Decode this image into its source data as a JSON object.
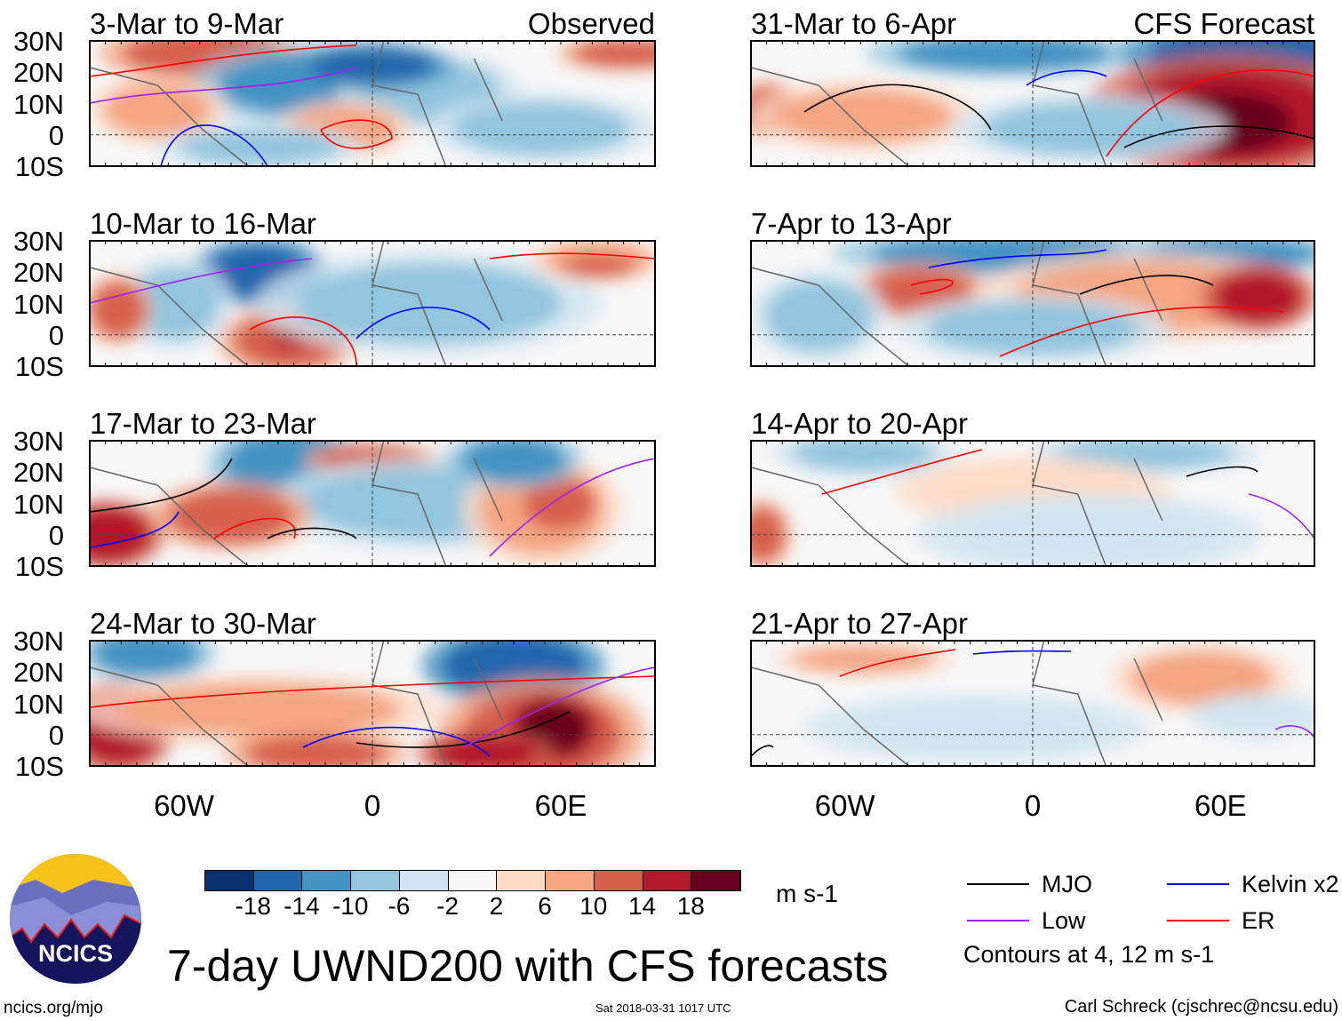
{
  "panels_left": [
    {
      "title": "3-Mar to 9-Mar",
      "tag": "Observed"
    },
    {
      "title": "10-Mar to 16-Mar"
    },
    {
      "title": "17-Mar to 23-Mar"
    },
    {
      "title": "24-Mar to 30-Mar"
    }
  ],
  "panels_right": [
    {
      "title": "31-Mar to 6-Apr",
      "tag": "CFS Forecast"
    },
    {
      "title": "7-Apr to 13-Apr"
    },
    {
      "title": "14-Apr to 20-Apr"
    },
    {
      "title": "21-Apr to 27-Apr"
    }
  ],
  "lat_labels": [
    "30N",
    "20N",
    "10N",
    "0",
    "10S"
  ],
  "lon_labels": [
    "60W",
    "0",
    "60E"
  ],
  "colorbar": {
    "colors": [
      "#08306b",
      "#2166ac",
      "#4393c3",
      "#92c5de",
      "#d1e5f0",
      "#f7f7f7",
      "#fddbc7",
      "#f4a582",
      "#d6604d",
      "#b2182b",
      "#67001f"
    ],
    "labels": [
      "-18",
      "-14",
      "-10",
      "-6",
      "-2",
      "2",
      "6",
      "10",
      "14",
      "18"
    ],
    "units": "m s-1"
  },
  "legend": {
    "items": [
      {
        "label": "MJO",
        "color": "#000000"
      },
      {
        "label": "Kelvin x2",
        "color": "#0000ff"
      },
      {
        "label": "Low",
        "color": "#a020f0"
      },
      {
        "label": "ER",
        "color": "#ff0000"
      }
    ],
    "note": "Contours at 4, 12 m s-1"
  },
  "title": "7-day UWND200 with CFS forecasts",
  "logo_text": "NCICS",
  "footer": {
    "url": "ncics.org/mjo",
    "timestamp": "Sat 2018-03-31 1017 UTC",
    "credit": "Carl Schreck (cjschrec@ncsu.edu)"
  }
}
